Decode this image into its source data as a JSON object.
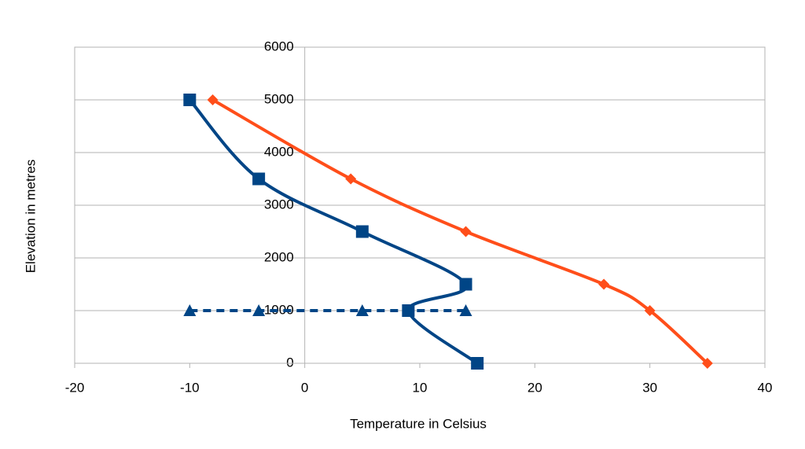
{
  "chart_data": {
    "type": "scatter",
    "x_label": "Temperature in Celsius",
    "y_label": "Elevation in metres",
    "xlim": [
      -20,
      40
    ],
    "xticks": [
      -20,
      -10,
      0,
      10,
      20,
      30,
      40
    ],
    "ylim": [
      0,
      6000
    ],
    "yticks": [
      0,
      1000,
      2000,
      3000,
      4000,
      5000,
      6000
    ],
    "grid": true,
    "series": [
      {
        "color": "#ff4e1a",
        "marker": "diamond",
        "smooth": true,
        "dashed": false,
        "x": [
          -8,
          4,
          14,
          26,
          30,
          35
        ],
        "values": [
          5000,
          3500,
          2500,
          1500,
          1000,
          0
        ]
      },
      {
        "color": "#004586",
        "marker": "square",
        "smooth": true,
        "dashed": false,
        "x": [
          -10,
          -4,
          5,
          14,
          9,
          15
        ],
        "values": [
          5000,
          3500,
          2500,
          1500,
          1000,
          0
        ]
      },
      {
        "color": "#004586",
        "marker": "triangle",
        "smooth": false,
        "dashed": true,
        "x": [
          -10,
          -4,
          5,
          14
        ],
        "values": [
          1000,
          1000,
          1000,
          1000
        ]
      }
    ]
  }
}
